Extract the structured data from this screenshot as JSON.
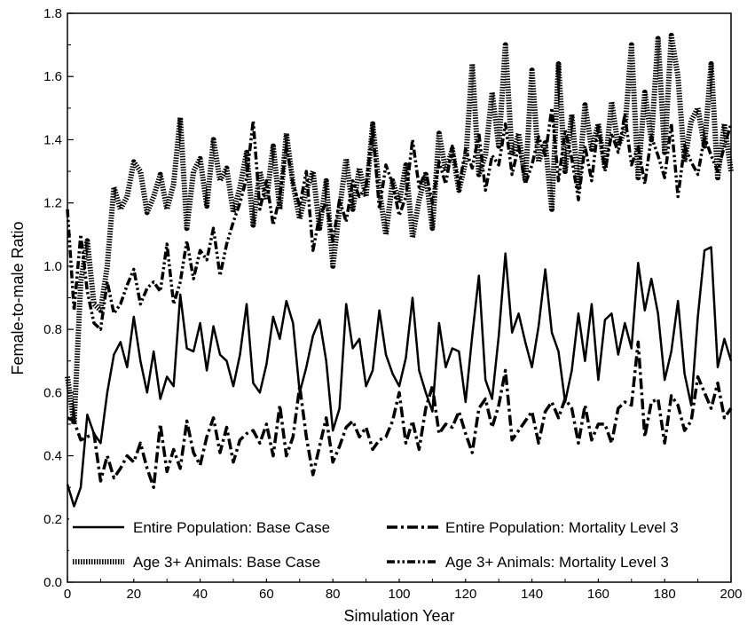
{
  "chart_data": {
    "type": "line",
    "xlabel": "Simulation Year",
    "ylabel": "Female-to-male Ratio",
    "xlim": [
      0,
      200
    ],
    "ylim": [
      0.0,
      1.8
    ],
    "x_ticks": [
      0,
      20,
      40,
      60,
      80,
      100,
      120,
      140,
      160,
      180,
      200
    ],
    "y_ticks": [
      "0.0",
      "0.2",
      "0.4",
      "0.6",
      "0.8",
      "1.0",
      "1.2",
      "1.4",
      "1.6",
      "1.8"
    ],
    "grid": false,
    "legend_position": "bottom",
    "series": [
      {
        "name": "Entire Population: Base Case",
        "style": "solid",
        "x": [
          0,
          2,
          4,
          6,
          8,
          10,
          12,
          14,
          16,
          18,
          20,
          22,
          24,
          26,
          28,
          30,
          32,
          34,
          36,
          38,
          40,
          42,
          44,
          46,
          48,
          50,
          52,
          54,
          56,
          58,
          60,
          62,
          64,
          66,
          68,
          70,
          72,
          74,
          76,
          78,
          80,
          82,
          84,
          86,
          88,
          90,
          92,
          94,
          96,
          98,
          100,
          102,
          104,
          106,
          108,
          110,
          112,
          114,
          116,
          118,
          120,
          122,
          124,
          126,
          128,
          130,
          132,
          134,
          136,
          138,
          140,
          142,
          144,
          146,
          148,
          150,
          152,
          154,
          156,
          158,
          160,
          162,
          164,
          166,
          168,
          170,
          172,
          174,
          176,
          178,
          180,
          182,
          184,
          186,
          188,
          190,
          192,
          194,
          196,
          198,
          200
        ],
        "values": [
          0.31,
          0.24,
          0.3,
          0.53,
          0.47,
          0.44,
          0.6,
          0.72,
          0.76,
          0.68,
          0.84,
          0.7,
          0.6,
          0.73,
          0.58,
          0.65,
          0.62,
          0.91,
          0.74,
          0.73,
          0.82,
          0.67,
          0.81,
          0.72,
          0.7,
          0.62,
          0.72,
          0.88,
          0.63,
          0.6,
          0.69,
          0.84,
          0.77,
          0.89,
          0.82,
          0.6,
          0.68,
          0.78,
          0.83,
          0.7,
          0.48,
          0.55,
          0.88,
          0.74,
          0.77,
          0.62,
          0.67,
          0.86,
          0.72,
          0.66,
          0.62,
          0.71,
          0.9,
          0.67,
          0.6,
          0.54,
          0.82,
          0.68,
          0.74,
          0.73,
          0.57,
          0.78,
          0.97,
          0.64,
          0.58,
          0.78,
          1.04,
          0.79,
          0.85,
          0.76,
          0.68,
          0.81,
          0.99,
          0.79,
          0.73,
          0.57,
          0.67,
          0.85,
          0.7,
          0.88,
          0.64,
          0.83,
          0.85,
          0.72,
          0.82,
          0.74,
          1.01,
          0.86,
          0.96,
          0.85,
          0.64,
          0.73,
          0.89,
          0.66,
          0.56,
          0.84,
          1.05,
          1.06,
          0.68,
          0.77,
          0.7
        ]
      },
      {
        "name": "Entire Population: Mortality Level 3",
        "style": "dashdot",
        "x": [
          0,
          2,
          4,
          6,
          8,
          10,
          12,
          14,
          16,
          18,
          20,
          22,
          24,
          26,
          28,
          30,
          32,
          34,
          36,
          38,
          40,
          42,
          44,
          46,
          48,
          50,
          52,
          54,
          56,
          58,
          60,
          62,
          64,
          66,
          68,
          70,
          72,
          74,
          76,
          78,
          80,
          82,
          84,
          86,
          88,
          90,
          92,
          94,
          96,
          98,
          100,
          102,
          104,
          106,
          108,
          110,
          112,
          114,
          116,
          118,
          120,
          122,
          124,
          126,
          128,
          130,
          132,
          134,
          136,
          138,
          140,
          142,
          144,
          146,
          148,
          150,
          152,
          154,
          156,
          158,
          160,
          162,
          164,
          166,
          168,
          170,
          172,
          174,
          176,
          178,
          180,
          182,
          184,
          186,
          188,
          190,
          192,
          194,
          196,
          198,
          200
        ],
        "values": [
          0.52,
          0.51,
          0.45,
          0.46,
          0.47,
          0.32,
          0.4,
          0.33,
          0.36,
          0.4,
          0.38,
          0.44,
          0.36,
          0.3,
          0.5,
          0.35,
          0.42,
          0.36,
          0.51,
          0.41,
          0.37,
          0.46,
          0.52,
          0.41,
          0.49,
          0.38,
          0.45,
          0.47,
          0.48,
          0.44,
          0.5,
          0.4,
          0.56,
          0.4,
          0.46,
          0.62,
          0.46,
          0.34,
          0.43,
          0.52,
          0.38,
          0.43,
          0.49,
          0.51,
          0.46,
          0.49,
          0.42,
          0.45,
          0.46,
          0.51,
          0.6,
          0.44,
          0.51,
          0.42,
          0.55,
          0.62,
          0.47,
          0.5,
          0.49,
          0.54,
          0.47,
          0.41,
          0.55,
          0.58,
          0.49,
          0.56,
          0.67,
          0.45,
          0.48,
          0.51,
          0.54,
          0.44,
          0.54,
          0.57,
          0.52,
          0.58,
          0.55,
          0.44,
          0.56,
          0.45,
          0.5,
          0.5,
          0.44,
          0.55,
          0.57,
          0.56,
          0.76,
          0.46,
          0.57,
          0.58,
          0.44,
          0.59,
          0.56,
          0.48,
          0.51,
          0.65,
          0.6,
          0.55,
          0.63,
          0.52,
          0.55
        ]
      },
      {
        "name": "Age 3+ Animals: Base Case",
        "style": "dotted-thick",
        "x": [
          0,
          2,
          4,
          6,
          8,
          10,
          12,
          14,
          16,
          18,
          20,
          22,
          24,
          26,
          28,
          30,
          32,
          34,
          36,
          38,
          40,
          42,
          44,
          46,
          48,
          50,
          52,
          54,
          56,
          58,
          60,
          62,
          64,
          66,
          68,
          70,
          72,
          74,
          76,
          78,
          80,
          82,
          84,
          86,
          88,
          90,
          92,
          94,
          96,
          98,
          100,
          102,
          104,
          106,
          108,
          110,
          112,
          114,
          116,
          118,
          120,
          122,
          124,
          126,
          128,
          130,
          132,
          134,
          136,
          138,
          140,
          142,
          144,
          146,
          148,
          150,
          152,
          154,
          156,
          158,
          160,
          162,
          164,
          166,
          168,
          170,
          172,
          174,
          176,
          178,
          180,
          182,
          184,
          186,
          188,
          190,
          192,
          194,
          196,
          198,
          200
        ],
        "values": [
          0.65,
          0.5,
          0.95,
          1.08,
          0.88,
          0.86,
          1.0,
          1.25,
          1.18,
          1.22,
          1.33,
          1.3,
          1.17,
          1.22,
          1.29,
          1.18,
          1.26,
          1.47,
          1.12,
          1.3,
          1.34,
          1.19,
          1.4,
          1.27,
          1.31,
          1.17,
          1.25,
          1.36,
          1.13,
          1.3,
          1.21,
          1.38,
          1.18,
          1.42,
          1.26,
          1.15,
          1.24,
          1.3,
          1.12,
          1.27,
          1.0,
          1.18,
          1.34,
          1.18,
          1.31,
          1.22,
          1.45,
          1.24,
          1.1,
          1.27,
          1.2,
          1.32,
          1.09,
          1.21,
          1.29,
          1.12,
          1.42,
          1.3,
          1.37,
          1.24,
          1.33,
          1.64,
          1.29,
          1.35,
          1.55,
          1.38,
          1.7,
          1.35,
          1.42,
          1.27,
          1.62,
          1.33,
          1.39,
          1.18,
          1.64,
          1.3,
          1.48,
          1.25,
          1.51,
          1.37,
          1.45,
          1.31,
          1.52,
          1.38,
          1.43,
          1.7,
          1.28,
          1.55,
          1.4,
          1.72,
          1.36,
          1.73,
          1.6,
          1.33,
          1.46,
          1.5,
          1.38,
          1.64,
          1.28,
          1.45,
          1.3
        ]
      },
      {
        "name": "Age 3+ Animals: Mortality Level 3",
        "style": "dashdotdot",
        "x": [
          0,
          2,
          4,
          6,
          8,
          10,
          12,
          14,
          16,
          18,
          20,
          22,
          24,
          26,
          28,
          30,
          32,
          34,
          36,
          38,
          40,
          42,
          44,
          46,
          48,
          50,
          52,
          54,
          56,
          58,
          60,
          62,
          64,
          66,
          68,
          70,
          72,
          74,
          76,
          78,
          80,
          82,
          84,
          86,
          88,
          90,
          92,
          94,
          96,
          98,
          100,
          102,
          104,
          106,
          108,
          110,
          112,
          114,
          116,
          118,
          120,
          122,
          124,
          126,
          128,
          130,
          132,
          134,
          136,
          138,
          140,
          142,
          144,
          146,
          148,
          150,
          152,
          154,
          156,
          158,
          160,
          162,
          164,
          166,
          168,
          170,
          172,
          174,
          176,
          178,
          180,
          182,
          184,
          186,
          188,
          190,
          192,
          194,
          196,
          198,
          200
        ],
        "values": [
          1.18,
          0.86,
          1.1,
          0.92,
          0.82,
          0.8,
          0.95,
          0.85,
          0.88,
          0.94,
          0.99,
          0.88,
          0.93,
          0.95,
          0.92,
          1.07,
          0.88,
          0.95,
          1.08,
          0.96,
          1.05,
          1.02,
          1.12,
          0.97,
          1.07,
          1.14,
          1.2,
          1.28,
          1.46,
          1.18,
          1.27,
          1.13,
          1.22,
          1.38,
          1.26,
          1.19,
          1.3,
          1.05,
          1.16,
          1.2,
          1.08,
          1.21,
          1.14,
          1.27,
          1.22,
          1.25,
          1.44,
          1.18,
          1.32,
          1.26,
          1.16,
          1.22,
          1.4,
          1.25,
          1.3,
          1.2,
          1.33,
          1.26,
          1.38,
          1.25,
          1.37,
          1.31,
          1.42,
          1.24,
          1.35,
          1.32,
          1.45,
          1.29,
          1.38,
          1.26,
          1.32,
          1.41,
          1.35,
          1.5,
          1.27,
          1.43,
          1.34,
          1.21,
          1.38,
          1.27,
          1.45,
          1.3,
          1.42,
          1.36,
          1.48,
          1.32,
          1.38,
          1.26,
          1.41,
          1.35,
          1.28,
          1.45,
          1.22,
          1.38,
          1.33,
          1.29,
          1.41,
          1.35,
          1.3,
          1.38,
          1.45
        ]
      }
    ]
  }
}
